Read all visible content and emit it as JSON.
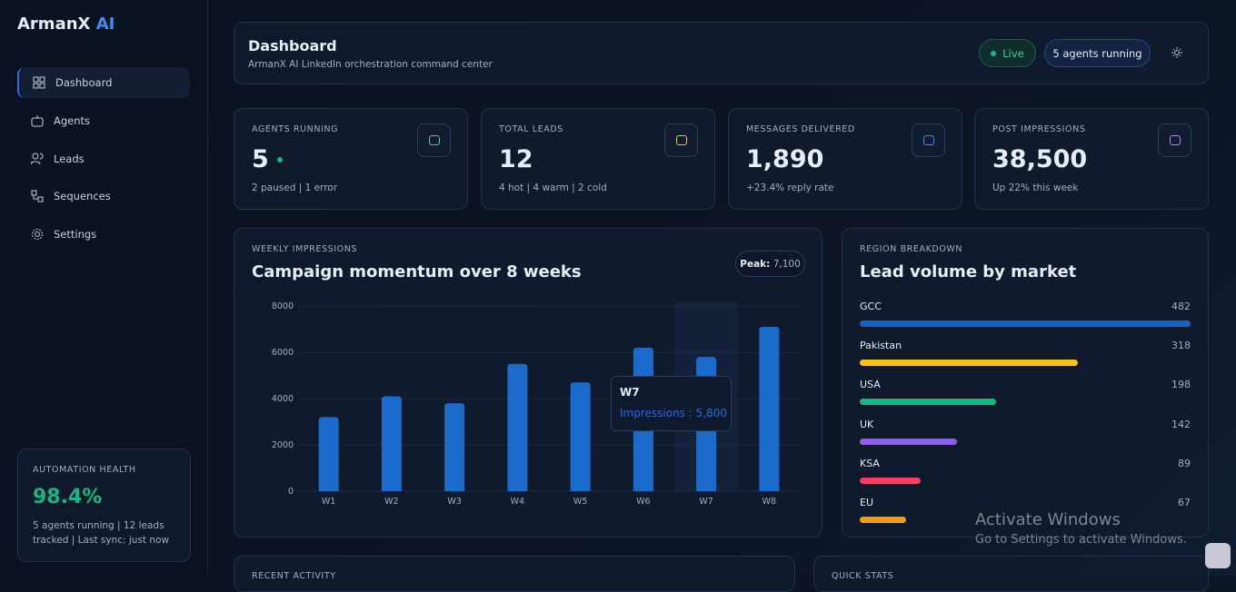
{
  "brand": {
    "name": "ArmanX",
    "accent": "AI"
  },
  "nav": [
    "Dashboard",
    "Agents",
    "Leads",
    "Sequences",
    "Settings"
  ],
  "health": {
    "title": "AUTOMATION HEALTH",
    "value": "98.4%",
    "note": "5 agents running | 12 leads tracked | Last sync: just now"
  },
  "header": {
    "title": "Dashboard",
    "subtitle": "ArmanX AI LinkedIn orchestration command center",
    "live": "Live",
    "agents": "5 agents running"
  },
  "stats": [
    {
      "label": "AGENTS RUNNING",
      "value": "5",
      "note": "2 paused | 1 error"
    },
    {
      "label": "TOTAL LEADS",
      "value": "12",
      "note": "4 hot | 4 warm | 2 cold"
    },
    {
      "label": "MESSAGES DELIVERED",
      "value": "1,890",
      "note": "+23.4% reply rate"
    },
    {
      "label": "POST IMPRESSIONS",
      "value": "38,500",
      "note": "Up 22% this week"
    }
  ],
  "chart_data": [
    {
      "type": "bar",
      "kicker": "WEEKLY IMPRESSIONS",
      "title": "Campaign momentum over 8 weeks",
      "peak_label": "Peak:",
      "peak_value": "7,100",
      "categories": [
        "W1",
        "W2",
        "W3",
        "W4",
        "W5",
        "W6",
        "W7",
        "W8"
      ],
      "series": [
        {
          "name": "Impressions",
          "color": "#1a6bcc",
          "values": [
            3200,
            4100,
            3800,
            5500,
            4700,
            6200,
            5800,
            7100
          ]
        }
      ],
      "ylim": [
        0,
        8000
      ],
      "yticks": [
        0,
        2000,
        4000,
        6000,
        8000
      ],
      "grid": true,
      "tooltip": {
        "title": "W7",
        "text": "Impressions : 5,800"
      }
    },
    {
      "type": "hbar",
      "kicker": "REGION BREAKDOWN",
      "title": "Lead volume by market",
      "categories": [
        "GCC",
        "Pakistan",
        "USA",
        "UK",
        "KSA",
        "EU"
      ],
      "values": [
        482,
        318,
        198,
        142,
        89,
        67
      ],
      "colors": [
        "#1565c0",
        "#f5c518",
        "#10b981",
        "#8b5cf6",
        "#f43f5e",
        "#f59e0b"
      ]
    }
  ],
  "bottom": [
    "RECENT ACTIVITY",
    "QUICK STATS"
  ],
  "watermark": {
    "title": "Activate Windows",
    "text": "Go to Settings to activate Windows."
  }
}
